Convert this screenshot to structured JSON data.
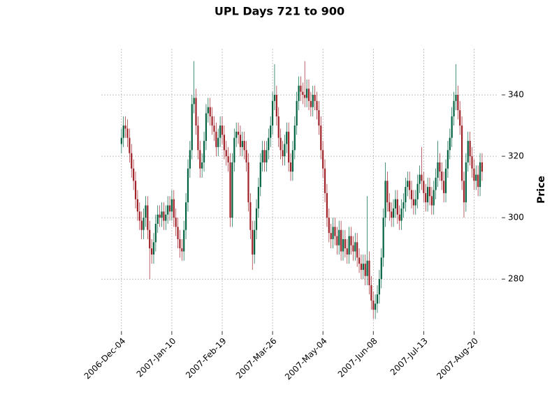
{
  "chart_data": {
    "type": "candlestick",
    "title": "UPL Days 721 to 900",
    "y_label": "Price",
    "up_color": "#006340",
    "down_color": "#a02128",
    "grid": true,
    "y_axis_side": "right",
    "ylim": [
      263,
      355
    ],
    "yticks": [
      280,
      300,
      320,
      340
    ],
    "xlim": [
      -10,
      187
    ],
    "xticks": [
      {
        "value": 0,
        "label": "2006-Dec-04"
      },
      {
        "value": 25,
        "label": "2007-Jan-10"
      },
      {
        "value": 50,
        "label": "2007-Feb-19"
      },
      {
        "value": 75,
        "label": "2007-Mar-26"
      },
      {
        "value": 100,
        "label": "2007-May-04"
      },
      {
        "value": 125,
        "label": "2007-Jun-08"
      },
      {
        "value": 150,
        "label": "2007-Jul-13"
      },
      {
        "value": 175,
        "label": "2007-Aug-20"
      }
    ],
    "open": [
      324,
      326,
      330,
      329,
      326,
      321,
      316,
      312,
      306,
      302,
      299,
      296,
      300,
      304,
      296,
      290,
      288,
      292,
      298,
      301,
      300,
      302,
      299,
      301,
      304,
      302,
      306,
      300,
      297,
      293,
      290,
      289,
      296,
      305,
      316,
      322,
      337,
      339,
      330,
      322,
      316,
      318,
      325,
      334,
      336,
      333,
      330,
      328,
      323,
      326,
      330,
      327,
      322,
      320,
      318,
      300,
      318,
      326,
      328,
      327,
      323,
      325,
      322,
      318,
      305,
      296,
      288,
      296,
      303,
      310,
      318,
      322,
      318,
      322,
      326,
      330,
      338,
      340,
      333,
      326,
      322,
      320,
      324,
      328,
      318,
      315,
      322,
      330,
      338,
      343,
      341,
      340,
      339,
      342,
      338,
      336,
      340,
      338,
      335,
      330,
      322,
      316,
      308,
      300,
      295,
      293,
      297,
      294,
      291,
      296,
      289,
      293,
      290,
      288,
      294,
      291,
      289,
      292,
      287,
      285,
      283,
      285,
      281,
      286,
      278,
      273,
      270,
      272,
      275,
      280,
      287,
      300,
      312,
      305,
      302,
      300,
      303,
      306,
      301,
      299,
      303,
      305,
      310,
      312,
      309,
      306,
      304,
      306,
      311,
      314,
      312,
      308,
      305,
      310,
      307,
      304,
      309,
      313,
      318,
      315,
      312,
      308,
      316,
      322,
      326,
      333,
      338,
      340,
      335,
      330,
      312,
      305,
      318,
      325,
      320,
      316,
      312,
      314,
      310,
      318
    ],
    "high": [
      329,
      333,
      333,
      332,
      329,
      324,
      319,
      315,
      309,
      305,
      302,
      303,
      307,
      307,
      299,
      293,
      295,
      301,
      304,
      304,
      305,
      305,
      304,
      307,
      307,
      309,
      309,
      303,
      300,
      296,
      293,
      299,
      308,
      319,
      325,
      340,
      351,
      342,
      333,
      325,
      321,
      328,
      337,
      339,
      339,
      336,
      333,
      331,
      329,
      333,
      333,
      330,
      325,
      323,
      321,
      321,
      329,
      331,
      331,
      330,
      328,
      328,
      325,
      321,
      308,
      299,
      299,
      306,
      313,
      321,
      325,
      325,
      325,
      329,
      333,
      341,
      350,
      343,
      336,
      329,
      325,
      327,
      331,
      331,
      321,
      325,
      333,
      341,
      346,
      346,
      344,
      351,
      345,
      345,
      341,
      343,
      343,
      341,
      338,
      333,
      325,
      319,
      311,
      303,
      298,
      300,
      300,
      297,
      299,
      299,
      296,
      296,
      293,
      297,
      297,
      294,
      295,
      295,
      290,
      288,
      288,
      288,
      307,
      289,
      281,
      276,
      275,
      278,
      283,
      290,
      303,
      318,
      315,
      308,
      305,
      306,
      309,
      309,
      304,
      306,
      308,
      313,
      315,
      315,
      312,
      309,
      309,
      314,
      317,
      323,
      315,
      311,
      313,
      313,
      310,
      312,
      316,
      325,
      321,
      318,
      315,
      319,
      325,
      329,
      336,
      341,
      350,
      343,
      338,
      333,
      315,
      321,
      328,
      328,
      323,
      319,
      317,
      317,
      321,
      321
    ],
    "low": [
      321,
      323,
      326,
      323,
      318,
      313,
      309,
      303,
      299,
      296,
      293,
      293,
      297,
      293,
      280,
      285,
      285,
      289,
      295,
      297,
      297,
      296,
      296,
      298,
      299,
      299,
      297,
      294,
      290,
      287,
      286,
      286,
      293,
      302,
      313,
      319,
      334,
      327,
      319,
      313,
      313,
      315,
      322,
      331,
      330,
      327,
      325,
      320,
      320,
      323,
      324,
      319,
      317,
      315,
      297,
      297,
      315,
      323,
      324,
      320,
      320,
      319,
      315,
      302,
      293,
      283,
      285,
      293,
      300,
      307,
      315,
      315,
      315,
      319,
      323,
      327,
      335,
      330,
      323,
      319,
      317,
      317,
      321,
      315,
      312,
      312,
      319,
      327,
      335,
      338,
      337,
      336,
      336,
      335,
      333,
      333,
      335,
      332,
      327,
      319,
      313,
      305,
      297,
      292,
      290,
      290,
      291,
      288,
      288,
      286,
      286,
      287,
      285,
      285,
      288,
      286,
      286,
      284,
      282,
      280,
      280,
      278,
      278,
      275,
      270,
      267,
      267,
      269,
      272,
      277,
      284,
      297,
      302,
      299,
      297,
      297,
      300,
      298,
      296,
      296,
      300,
      302,
      307,
      306,
      303,
      301,
      301,
      303,
      308,
      309,
      305,
      302,
      302,
      304,
      301,
      301,
      306,
      310,
      312,
      309,
      305,
      305,
      313,
      319,
      323,
      330,
      335,
      332,
      327,
      309,
      300,
      302,
      315,
      317,
      313,
      309,
      309,
      307,
      307,
      312
    ],
    "close": [
      326,
      330,
      329,
      326,
      321,
      316,
      312,
      306,
      302,
      299,
      296,
      300,
      304,
      296,
      290,
      288,
      292,
      298,
      301,
      300,
      302,
      299,
      301,
      304,
      302,
      306,
      300,
      297,
      293,
      290,
      289,
      296,
      305,
      316,
      322,
      337,
      339,
      330,
      322,
      316,
      318,
      325,
      334,
      336,
      333,
      330,
      328,
      323,
      326,
      330,
      327,
      322,
      320,
      318,
      300,
      318,
      326,
      328,
      327,
      323,
      325,
      322,
      318,
      305,
      296,
      288,
      296,
      303,
      310,
      318,
      322,
      318,
      322,
      326,
      330,
      338,
      340,
      333,
      326,
      322,
      320,
      324,
      328,
      318,
      315,
      322,
      330,
      338,
      343,
      341,
      340,
      339,
      342,
      338,
      336,
      340,
      338,
      335,
      330,
      322,
      316,
      308,
      300,
      295,
      293,
      297,
      294,
      291,
      296,
      289,
      293,
      290,
      288,
      294,
      291,
      289,
      292,
      287,
      285,
      283,
      285,
      281,
      286,
      278,
      273,
      270,
      272,
      275,
      280,
      287,
      300,
      312,
      305,
      302,
      300,
      303,
      306,
      301,
      299,
      303,
      305,
      310,
      312,
      309,
      306,
      304,
      306,
      311,
      314,
      312,
      308,
      305,
      310,
      307,
      304,
      309,
      313,
      318,
      315,
      312,
      308,
      316,
      322,
      326,
      333,
      338,
      340,
      335,
      330,
      312,
      305,
      318,
      325,
      320,
      316,
      312,
      314,
      310,
      318,
      315
    ]
  }
}
